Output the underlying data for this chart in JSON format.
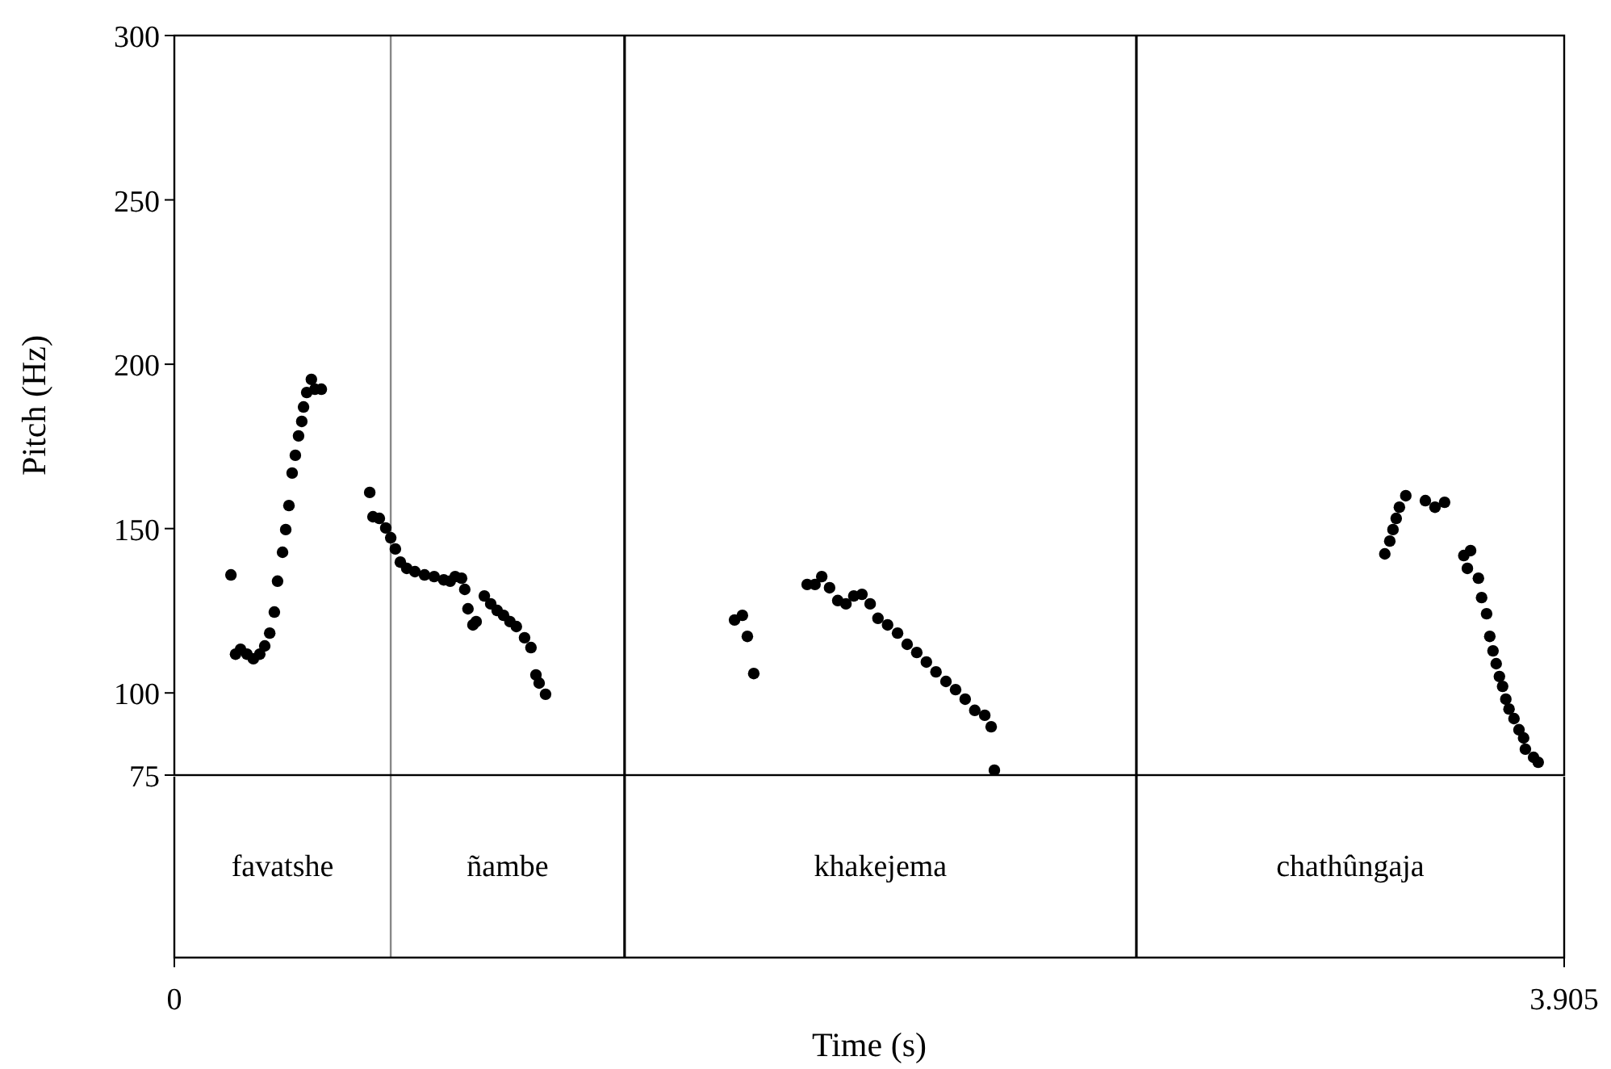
{
  "chart_data": {
    "type": "scatter",
    "xlabel": "Time (s)",
    "ylabel": "Pitch (Hz)",
    "marker": "circle",
    "grid": false,
    "xlim": [
      0,
      3.905
    ],
    "xticks": [
      0,
      3.905
    ],
    "ylim": [
      75,
      300
    ],
    "yticks": [
      75,
      100,
      150,
      200,
      250,
      300
    ],
    "series": [
      {
        "color": "#000000",
        "x": [
          0.159,
          0.172,
          0.186,
          0.204,
          0.222,
          0.24,
          0.254,
          0.268,
          0.281,
          0.29,
          0.304,
          0.313,
          0.322,
          0.331,
          0.34,
          0.349,
          0.358,
          0.363,
          0.372,
          0.385,
          0.395,
          0.413,
          0.549,
          0.558,
          0.576,
          0.594,
          0.608,
          0.621,
          0.635,
          0.653,
          0.676,
          0.703,
          0.73,
          0.757,
          0.775,
          0.789,
          0.807,
          0.816,
          0.825,
          0.839,
          0.848,
          0.871,
          0.889,
          0.907,
          0.925,
          0.943,
          0.961,
          0.984,
          1.002,
          1.016,
          1.025,
          1.043,
          1.574,
          1.596,
          1.61,
          1.628,
          1.778,
          1.8,
          1.819,
          1.841,
          1.864,
          1.887,
          1.909,
          1.932,
          1.955,
          1.977,
          2.004,
          2.032,
          2.059,
          2.086,
          2.113,
          2.14,
          2.168,
          2.195,
          2.222,
          2.249,
          2.277,
          2.295,
          2.304,
          3.401,
          3.415,
          3.424,
          3.433,
          3.442,
          3.46,
          3.515,
          3.542,
          3.569,
          3.623,
          3.642,
          3.633,
          3.664,
          3.673,
          3.687,
          3.696,
          3.705,
          3.714,
          3.723,
          3.732,
          3.741,
          3.75,
          3.764,
          3.778,
          3.791,
          3.796,
          3.819,
          3.832
        ],
        "values": [
          135.9,
          111.8,
          113.3,
          111.8,
          110.4,
          111.8,
          114.3,
          118.2,
          124.6,
          134,
          142.8,
          149.7,
          157,
          166.9,
          172.3,
          178.2,
          182.6,
          187,
          191.4,
          195.4,
          192.4,
          192.4,
          161,
          153.6,
          153.1,
          150.2,
          147.2,
          143.8,
          139.8,
          137.9,
          136.9,
          135.9,
          135.4,
          134.4,
          134,
          135.4,
          134.9,
          131.5,
          125.6,
          120.7,
          121.7,
          129.5,
          127.1,
          125.1,
          123.6,
          121.7,
          120.2,
          116.8,
          113.8,
          105.5,
          103,
          99.6,
          122.2,
          123.6,
          117.2,
          105.9,
          133,
          133,
          135.4,
          132,
          128.1,
          127.1,
          129.5,
          130,
          127.1,
          122.7,
          120.7,
          118.2,
          114.8,
          112.3,
          109.4,
          106.4,
          103.5,
          101,
          98.1,
          94.7,
          93.2,
          89.7,
          76.5,
          142.3,
          146.2,
          149.7,
          153.1,
          156.5,
          160,
          158.5,
          156.5,
          158,
          141.8,
          143.3,
          137.9,
          134.9,
          129,
          124.1,
          117.2,
          112.8,
          108.9,
          105,
          102,
          98.1,
          95.1,
          92.2,
          88.8,
          86.3,
          82.9,
          80.4,
          78.9
        ]
      }
    ],
    "ref_lines": [
      {
        "axis": "x",
        "value": 0.608,
        "color": "#888888"
      },
      {
        "axis": "x",
        "value": 1.265,
        "color": "#000000"
      },
      {
        "axis": "x",
        "value": 2.703,
        "color": "#000000"
      }
    ],
    "annotations": [
      "favatshe",
      "ñambe",
      "khakejema",
      "chathûngaja"
    ]
  }
}
